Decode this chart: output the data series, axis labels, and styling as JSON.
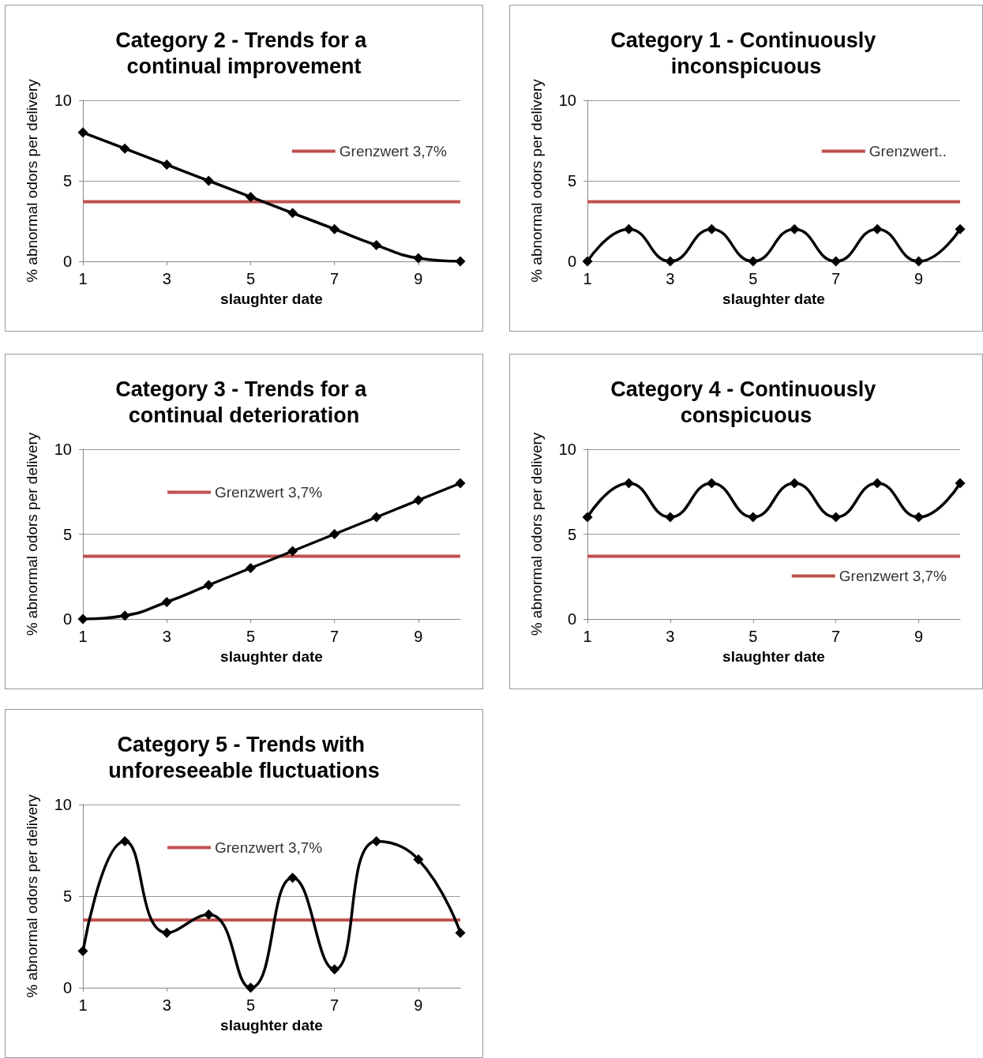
{
  "chart_data": [
    {
      "type": "line",
      "title": "Category 2 - Trends for a continual improvement",
      "xlabel": "slaughter date",
      "ylabel": "% abnormal odors per delivery",
      "x": [
        1,
        2,
        3,
        4,
        5,
        6,
        7,
        8,
        9,
        10
      ],
      "series": [
        {
          "color": "#000000",
          "values": [
            8,
            7,
            6,
            5,
            4,
            3,
            2,
            1,
            0.2,
            0
          ]
        }
      ],
      "ref_lines": [
        {
          "axis": "y",
          "value": 3.7,
          "label": "Grenzwert 3,7%",
          "color": "#c0504d"
        }
      ],
      "xlim": [
        1,
        10
      ],
      "xticks": [
        1,
        3,
        5,
        7,
        9
      ],
      "ylim": [
        0,
        10
      ],
      "yticks": [
        0,
        5,
        10
      ],
      "grid": "y",
      "legend": "top right",
      "marker": "diamond",
      "line_style": "solid"
    },
    {
      "type": "line",
      "title": "Category 1 - Continuously inconspicuous",
      "xlabel": "slaughter date",
      "ylabel": "% abnormal odors per delivery",
      "x": [
        1,
        2,
        3,
        4,
        5,
        6,
        7,
        8,
        9,
        10
      ],
      "series": [
        {
          "color": "#000000",
          "values": [
            0,
            2,
            0,
            2,
            0,
            2,
            0,
            2,
            0,
            2
          ]
        }
      ],
      "ref_lines": [
        {
          "axis": "y",
          "value": 3.7,
          "label": "Grenzwert..",
          "color": "#c0504d"
        }
      ],
      "xlim": [
        1,
        10
      ],
      "xticks": [
        1,
        3,
        5,
        7,
        9
      ],
      "ylim": [
        0,
        10
      ],
      "yticks": [
        0,
        5,
        10
      ],
      "grid": "y",
      "legend": "top right",
      "marker": "diamond",
      "line_style": "solid"
    },
    {
      "type": "line",
      "title": "Category 3 - Trends for a continual deterioration",
      "xlabel": "slaughter date",
      "ylabel": "% abnormal odors per delivery",
      "x": [
        1,
        2,
        3,
        4,
        5,
        6,
        7,
        8,
        9,
        10
      ],
      "series": [
        {
          "color": "#000000",
          "values": [
            0,
            0.2,
            1,
            2,
            3,
            4,
            5,
            6,
            7,
            8
          ]
        }
      ],
      "ref_lines": [
        {
          "axis": "y",
          "value": 3.7,
          "label": "Grenzwert 3,7%",
          "color": "#c0504d"
        }
      ],
      "xlim": [
        1,
        10
      ],
      "xticks": [
        1,
        3,
        5,
        7,
        9
      ],
      "ylim": [
        0,
        10
      ],
      "yticks": [
        0,
        5,
        10
      ],
      "grid": "y",
      "legend": "top left",
      "marker": "diamond",
      "line_style": "solid"
    },
    {
      "type": "line",
      "title": "Category 4 - Continuously conspicuous",
      "xlabel": "slaughter date",
      "ylabel": "% abnormal odors per delivery",
      "x": [
        1,
        2,
        3,
        4,
        5,
        6,
        7,
        8,
        9,
        10
      ],
      "series": [
        {
          "color": "#000000",
          "values": [
            6,
            8,
            6,
            8,
            6,
            8,
            6,
            8,
            6,
            8
          ]
        }
      ],
      "ref_lines": [
        {
          "axis": "y",
          "value": 3.7,
          "label": "Grenzwert 3,7%",
          "color": "#c0504d"
        }
      ],
      "xlim": [
        1,
        10
      ],
      "xticks": [
        1,
        3,
        5,
        7,
        9
      ],
      "ylim": [
        0,
        10
      ],
      "yticks": [
        0,
        5,
        10
      ],
      "grid": "y",
      "legend": "bottom right",
      "marker": "diamond",
      "line_style": "solid"
    },
    {
      "type": "line",
      "title": "Category 5 - Trends with unforeseeable fluctuations",
      "xlabel": "slaughter date",
      "ylabel": "% abnormal odors per delivery",
      "x": [
        1,
        2,
        3,
        4,
        5,
        6,
        7,
        8,
        9,
        10
      ],
      "series": [
        {
          "color": "#000000",
          "values": [
            2,
            8,
            3,
            4,
            0,
            6,
            1,
            8,
            7,
            3
          ]
        }
      ],
      "ref_lines": [
        {
          "axis": "y",
          "value": 3.7,
          "label": "Grenzwert 3,7%",
          "color": "#c0504d"
        }
      ],
      "xlim": [
        1,
        10
      ],
      "xticks": [
        1,
        3,
        5,
        7,
        9
      ],
      "ylim": [
        0,
        10
      ],
      "yticks": [
        0,
        5,
        10
      ],
      "grid": "y",
      "legend": "top left",
      "marker": "diamond",
      "line_style": "solid"
    }
  ]
}
